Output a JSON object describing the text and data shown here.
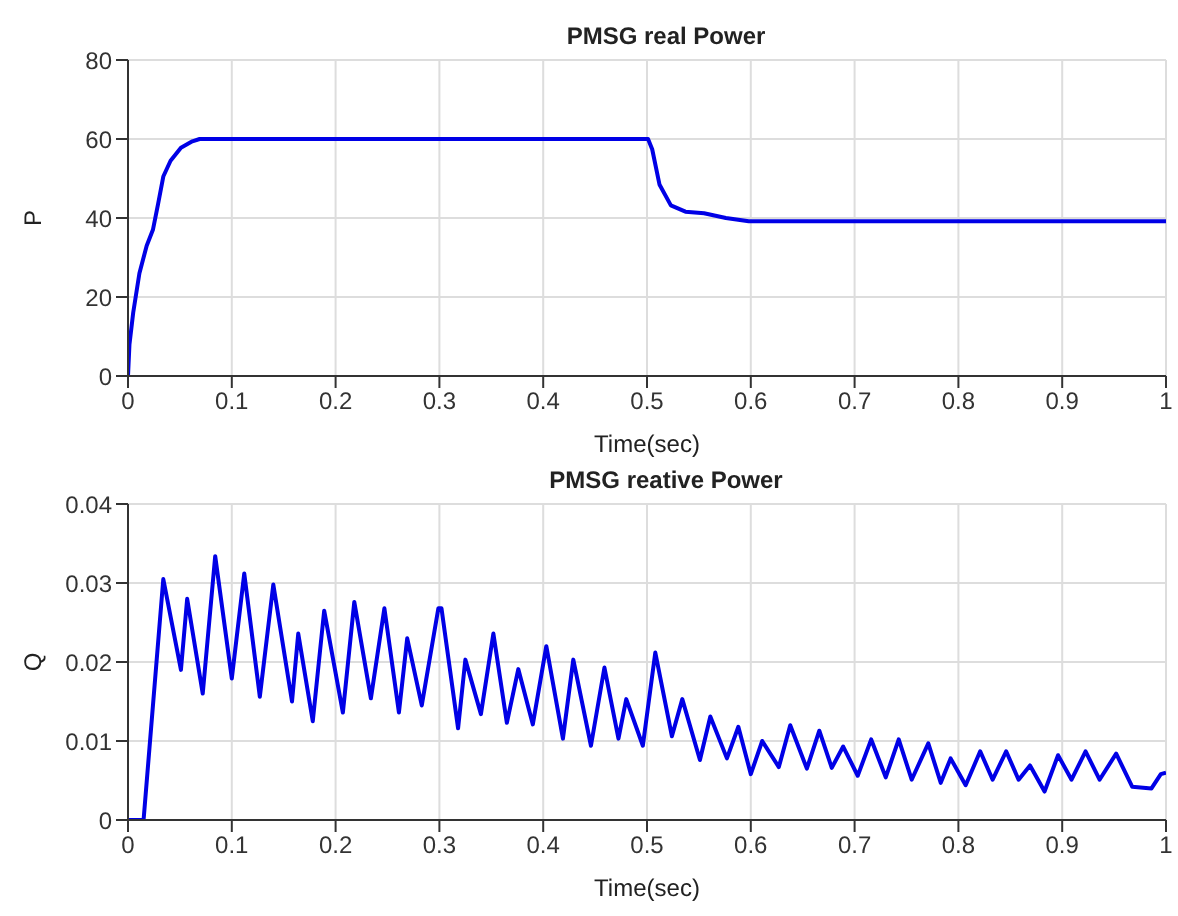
{
  "chart_data": [
    {
      "type": "line",
      "title": "PMSG real Power",
      "xlabel": "Time(sec)",
      "ylabel": "P",
      "xlim": [
        0,
        1
      ],
      "xticks": [
        0,
        0.1,
        0.2,
        0.3,
        0.4,
        0.5,
        0.6,
        0.7,
        0.8,
        0.9,
        1
      ],
      "ylim": [
        0,
        80
      ],
      "yticks": [
        0,
        20,
        40,
        60,
        80
      ],
      "grid": true,
      "legend": false,
      "series": [
        {
          "color": "#0000e6",
          "x": [
            0,
            0.0014,
            0.005,
            0.011,
            0.018,
            0.024,
            0.029,
            0.034,
            0.041,
            0.051,
            0.062,
            0.069,
            0.501,
            0.505,
            0.512,
            0.523,
            0.537,
            0.555,
            0.576,
            0.598,
            1
          ],
          "values": [
            0,
            8,
            16,
            26,
            33,
            37,
            43.6,
            50.5,
            54.5,
            57.8,
            59.4,
            60,
            60,
            57.4,
            48.5,
            43.2,
            41.6,
            41.2,
            40,
            39.2,
            39.2
          ]
        }
      ]
    },
    {
      "type": "line",
      "title": "PMSG reative Power",
      "xlabel": "Time(sec)",
      "ylabel": "Q",
      "xlim": [
        0,
        1
      ],
      "xticks": [
        0,
        0.1,
        0.2,
        0.3,
        0.4,
        0.5,
        0.6,
        0.7,
        0.8,
        0.9,
        1
      ],
      "ylim": [
        0,
        0.04
      ],
      "yticks": [
        0,
        0.01,
        0.02,
        0.03,
        0.04
      ],
      "grid": true,
      "legend": false,
      "series": [
        {
          "color": "#0000e6",
          "x": [
            0,
            0.015,
            0.034,
            0.051,
            0.057,
            0.072,
            0.084,
            0.1,
            0.112,
            0.127,
            0.14,
            0.158,
            0.164,
            0.178,
            0.189,
            0.207,
            0.218,
            0.234,
            0.247,
            0.261,
            0.269,
            0.283,
            0.299,
            0.302,
            0.318,
            0.325,
            0.34,
            0.352,
            0.365,
            0.376,
            0.39,
            0.403,
            0.419,
            0.429,
            0.446,
            0.459,
            0.4725,
            0.48,
            0.496,
            0.508,
            0.524,
            0.534,
            0.551,
            0.561,
            0.577,
            0.588,
            0.6,
            0.611,
            0.627,
            0.638,
            0.654,
            0.666,
            0.678,
            0.689,
            0.703,
            0.716,
            0.73,
            0.7425,
            0.755,
            0.771,
            0.783,
            0.7925,
            0.807,
            0.821,
            0.833,
            0.846,
            0.858,
            0.869,
            0.883,
            0.896,
            0.909,
            0.9225,
            0.936,
            0.952,
            0.9675,
            0.986,
            0.995,
            1
          ],
          "values": [
            0,
            0,
            0.0305,
            0.019,
            0.028,
            0.016,
            0.0334,
            0.0179,
            0.0312,
            0.0156,
            0.0298,
            0.015,
            0.0236,
            0.0125,
            0.0265,
            0.0136,
            0.0276,
            0.0154,
            0.0268,
            0.0136,
            0.023,
            0.0145,
            0.0268,
            0.0268,
            0.0116,
            0.0203,
            0.0134,
            0.0236,
            0.0123,
            0.0191,
            0.0121,
            0.022,
            0.0103,
            0.0203,
            0.0094,
            0.0193,
            0.0103,
            0.0153,
            0.0094,
            0.0212,
            0.0106,
            0.0153,
            0.0076,
            0.0131,
            0.0078,
            0.0118,
            0.0058,
            0.01,
            0.0067,
            0.012,
            0.0065,
            0.0113,
            0.0066,
            0.0093,
            0.0056,
            0.0102,
            0.0054,
            0.0102,
            0.0051,
            0.0097,
            0.0047,
            0.0078,
            0.0044,
            0.0087,
            0.0051,
            0.0087,
            0.0051,
            0.0069,
            0.0036,
            0.0082,
            0.0051,
            0.0087,
            0.0051,
            0.0084,
            0.0042,
            0.004,
            0.0058,
            0.006
          ]
        }
      ]
    }
  ]
}
